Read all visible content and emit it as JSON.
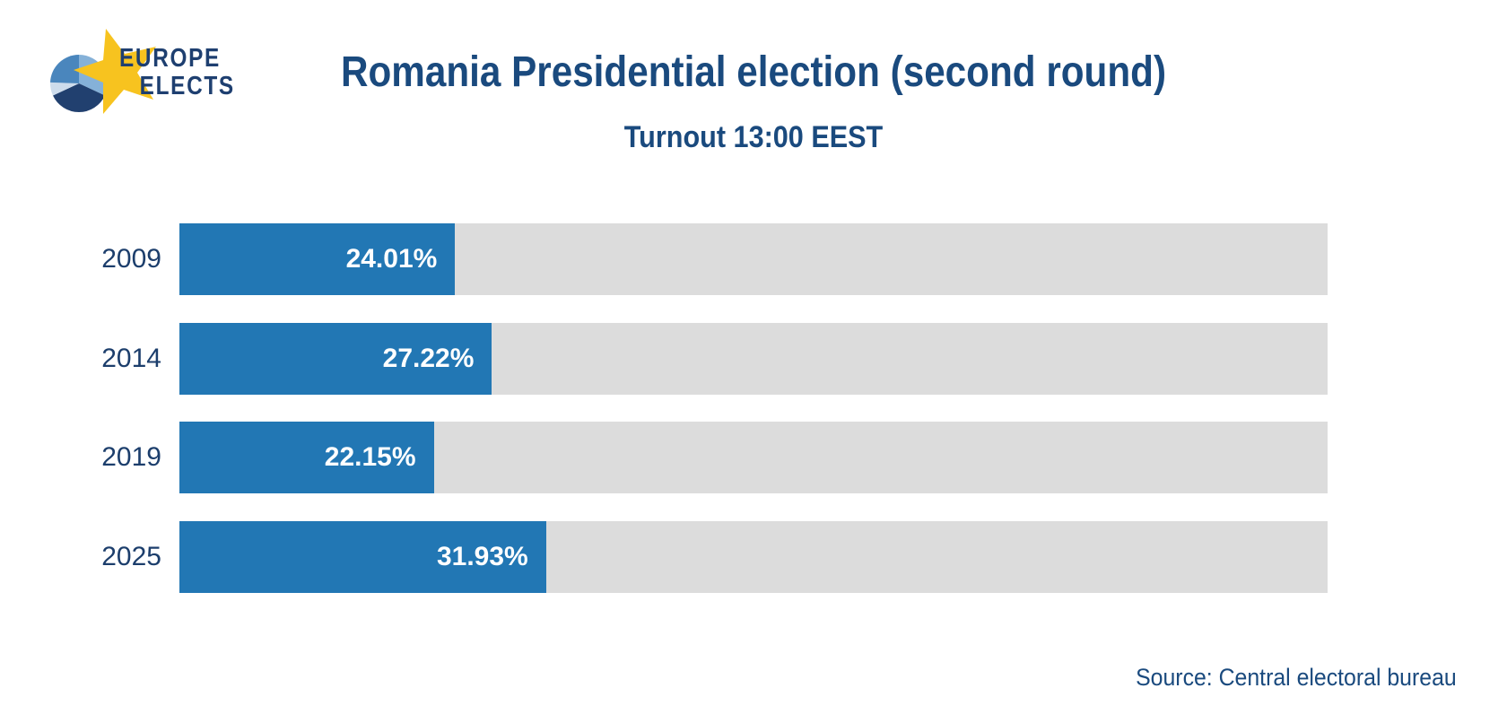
{
  "logo": {
    "line1": "EUROPE",
    "line2": "ELECTS"
  },
  "header": {
    "title": "Romania Presidential election (second round)",
    "subtitle": "Turnout 13:00 EEST"
  },
  "chart_data": {
    "type": "bar",
    "orientation": "horizontal",
    "title": "Romania Presidential election (second round)",
    "subtitle": "Turnout 13:00 EEST",
    "categories": [
      "2009",
      "2014",
      "2019",
      "2025"
    ],
    "values": [
      24.01,
      27.22,
      22.15,
      31.93
    ],
    "value_labels": [
      "24.01%",
      "27.22%",
      "22.15%",
      "31.93%"
    ],
    "unit": "%",
    "xlim": [
      0,
      100
    ],
    "grid": false,
    "legend": false,
    "bar_color": "#2277b4",
    "track_color": "#dcdcdc",
    "value_label_color": "#ffffff",
    "category_label_color": "#1c3e6c"
  },
  "footer": {
    "source": "Source: Central electoral bureau"
  },
  "colors": {
    "background": "#ffffff",
    "navy_text": "#1a4a7e",
    "logo_navy": "#1e3f70",
    "star_gold": "#f7c31f",
    "pie_light_blue": "#85b1d8",
    "pie_medium_blue": "#4a86bd",
    "pie_pale_blue": "#cddcec",
    "pie_dark_navy": "#21406f"
  }
}
